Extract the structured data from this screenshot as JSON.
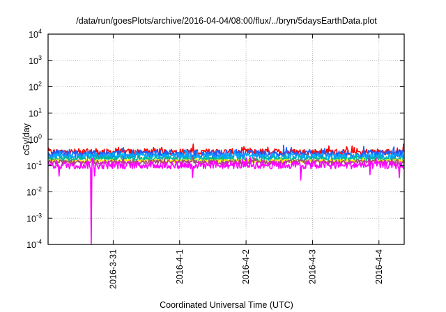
{
  "chart_data": {
    "type": "line",
    "title": "/data/run/goesPlots/archive/2016-04-04/08:00/flux/../bryn/5daysEarthData.plot",
    "xlabel": "Coordinated Universal Time (UTC)",
    "ylabel": "cGy/day",
    "x_units": "days relative to 2016-3-31 00:00 UTC",
    "xlim": [
      -0.98,
      4.38
    ],
    "yscale": "log",
    "ylim": [
      0.0001,
      10000
    ],
    "grid": true,
    "legend": "none",
    "x_ticks": [
      {
        "value": 0,
        "label": "2016-3-31"
      },
      {
        "value": 1,
        "label": "2016-4-1"
      },
      {
        "value": 2,
        "label": "2016-4-2"
      },
      {
        "value": 3,
        "label": "2016-4-3"
      },
      {
        "value": 4,
        "label": "2016-4-4"
      }
    ],
    "y_ticks": [
      {
        "exp": 4,
        "base": "10",
        "sup": "4"
      },
      {
        "exp": 3,
        "base": "10",
        "sup": "3"
      },
      {
        "exp": 2,
        "base": "10",
        "sup": "2"
      },
      {
        "exp": 1,
        "base": "10",
        "sup": "1"
      },
      {
        "exp": 0,
        "base": "10",
        "sup": "0"
      },
      {
        "exp": -1,
        "base": "10",
        "sup": "-1"
      },
      {
        "exp": -2,
        "base": "10",
        "sup": "-2"
      },
      {
        "exp": -3,
        "base": "10",
        "sup": "-3"
      },
      {
        "exp": -4,
        "base": "10",
        "sup": "-4"
      }
    ],
    "series": [
      {
        "name": "red",
        "color": "#ff0000",
        "level": 0.33,
        "noise": 0.12
      },
      {
        "name": "blue",
        "color": "#2060ff",
        "level": 0.27,
        "noise": 0.16
      },
      {
        "name": "light-blue",
        "color": "#00a8ff",
        "level": 0.22,
        "noise": 0.12
      },
      {
        "name": "teal",
        "color": "#00b890",
        "level": 0.18,
        "noise": 0.08
      },
      {
        "name": "yellow",
        "color": "#ffee00",
        "level": 0.15,
        "noise": 0.06
      },
      {
        "name": "purple-brown",
        "color": "#a0507a",
        "level": 0.135,
        "noise": 0.08
      },
      {
        "name": "magenta",
        "color": "#ff00ff",
        "level": 0.105,
        "noise": 0.15,
        "dips": [
          {
            "x": -0.81,
            "y": 0.04
          },
          {
            "x": -0.33,
            "y": 0.0001
          },
          {
            "x": -0.28,
            "y": 0.04
          },
          {
            "x": 1.19,
            "y": 0.035
          },
          {
            "x": 2.82,
            "y": 0.028
          },
          {
            "x": 3.86,
            "y": 0.045
          },
          {
            "x": 4.31,
            "y": 0.035
          }
        ]
      }
    ]
  }
}
